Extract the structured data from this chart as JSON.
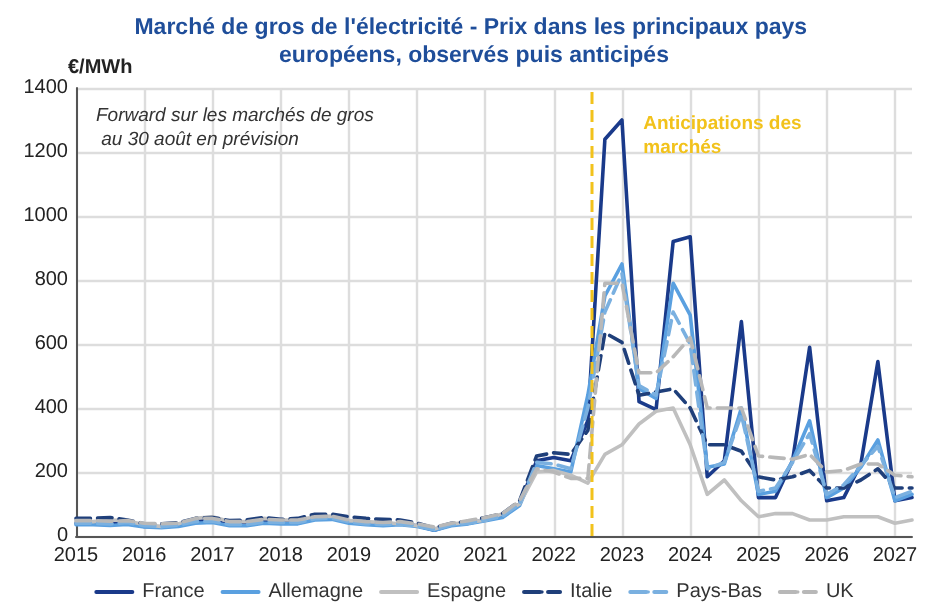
{
  "chart_data": {
    "type": "line",
    "title": "Marché de gros de l'électricité - Prix dans les principaux pays européens, observés puis anticipés",
    "ylabel": "€/MWh",
    "annotations": [
      "Forward sur les marchés de gros au 30 août en prévision"
    ],
    "x": [
      2015,
      2015.25,
      2015.5,
      2015.75,
      2016,
      2016.25,
      2016.5,
      2016.75,
      2017,
      2017.25,
      2017.5,
      2017.75,
      2018,
      2018.25,
      2018.5,
      2018.75,
      2019,
      2019.25,
      2019.5,
      2019.75,
      2020,
      2020.25,
      2020.5,
      2020.75,
      2021,
      2021.25,
      2021.5,
      2021.75,
      2022,
      2022.25,
      2022.5,
      2022.75,
      2023,
      2023.25,
      2023.5,
      2023.75,
      2024,
      2024.25,
      2024.5,
      2024.75,
      2025,
      2025.25,
      2025.5,
      2025.75,
      2026,
      2026.25,
      2026.5,
      2026.75,
      2027,
      2027.25
    ],
    "series": [
      {
        "name": "France",
        "color": "#1a3a8a",
        "line_style": "solid",
        "values": [
          40,
          40,
          38,
          40,
          30,
          28,
          32,
          50,
          48,
          35,
          35,
          45,
          42,
          40,
          55,
          58,
          45,
          38,
          35,
          38,
          32,
          18,
          35,
          40,
          50,
          60,
          100,
          235,
          245,
          235,
          360,
          1240,
          1300,
          420,
          395,
          920,
          935,
          185,
          235,
          670,
          120,
          120,
          235,
          590,
          110,
          120,
          225,
          545,
          110,
          120
        ]
      },
      {
        "name": "Allemagne",
        "color": "#5aa0e0",
        "line_style": "solid",
        "values": [
          35,
          35,
          33,
          36,
          28,
          26,
          30,
          40,
          42,
          32,
          32,
          40,
          38,
          38,
          50,
          52,
          40,
          35,
          32,
          35,
          30,
          18,
          32,
          38,
          48,
          58,
          95,
          220,
          210,
          200,
          440,
          750,
          850,
          460,
          430,
          790,
          690,
          215,
          225,
          400,
          130,
          140,
          235,
          360,
          120,
          150,
          215,
          300,
          110,
          130
        ]
      },
      {
        "name": "Espagne",
        "color": "#c0c0c0",
        "line_style": "solid",
        "values": [
          45,
          45,
          50,
          48,
          35,
          30,
          38,
          55,
          60,
          45,
          45,
          55,
          50,
          50,
          60,
          62,
          48,
          45,
          42,
          38,
          32,
          22,
          38,
          42,
          50,
          70,
          100,
          200,
          205,
          190,
          165,
          255,
          285,
          350,
          390,
          400,
          285,
          130,
          175,
          110,
          60,
          70,
          70,
          50,
          50,
          60,
          60,
          60,
          40,
          50
        ]
      },
      {
        "name": "Italie",
        "color": "#1f3f7a",
        "line_style": "dashed",
        "values": [
          55,
          55,
          58,
          50,
          38,
          38,
          42,
          55,
          58,
          48,
          50,
          58,
          52,
          55,
          68,
          68,
          60,
          55,
          52,
          50,
          40,
          25,
          40,
          45,
          58,
          70,
          110,
          250,
          260,
          255,
          330,
          635,
          605,
          440,
          450,
          460,
          400,
          285,
          285,
          265,
          185,
          175,
          185,
          205,
          150,
          150,
          175,
          210,
          150,
          150
        ]
      },
      {
        "name": "Pays-Bas",
        "color": "#7ab0e0",
        "line_style": "dashed",
        "values": [
          40,
          40,
          38,
          42,
          32,
          30,
          34,
          45,
          46,
          36,
          36,
          44,
          42,
          42,
          54,
          56,
          44,
          38,
          36,
          38,
          32,
          20,
          35,
          40,
          50,
          62,
          100,
          230,
          225,
          210,
          400,
          700,
          820,
          470,
          440,
          700,
          600,
          210,
          230,
          380,
          140,
          150,
          230,
          320,
          130,
          160,
          220,
          280,
          120,
          140
        ]
      },
      {
        "name": "UK",
        "color": "#b8b8b8",
        "line_style": "dashed",
        "values": [
          48,
          48,
          46,
          48,
          40,
          38,
          40,
          55,
          55,
          45,
          45,
          52,
          50,
          50,
          60,
          62,
          50,
          45,
          42,
          45,
          38,
          28,
          40,
          48,
          58,
          70,
          110,
          210,
          200,
          180,
          180,
          790,
          790,
          510,
          510,
          560,
          620,
          400,
          400,
          400,
          250,
          245,
          240,
          255,
          200,
          205,
          225,
          225,
          190,
          185
        ]
      }
    ],
    "xlim": [
      2015,
      2027.25
    ],
    "xticks": [
      2015,
      2016,
      2017,
      2018,
      2019,
      2020,
      2021,
      2022,
      2023,
      2024,
      2025,
      2026,
      2027
    ],
    "ylim": [
      0,
      1400
    ],
    "yticks": [
      0,
      200,
      400,
      600,
      800,
      1000,
      1200,
      1400
    ],
    "ref_lines": [
      {
        "axis": "x",
        "value": 2022.55,
        "label": "Anticipations des marchés",
        "color": "#f2c21b",
        "line_style": "dashed"
      }
    ],
    "grid": true,
    "legend": "bottom",
    "marker": "none"
  }
}
